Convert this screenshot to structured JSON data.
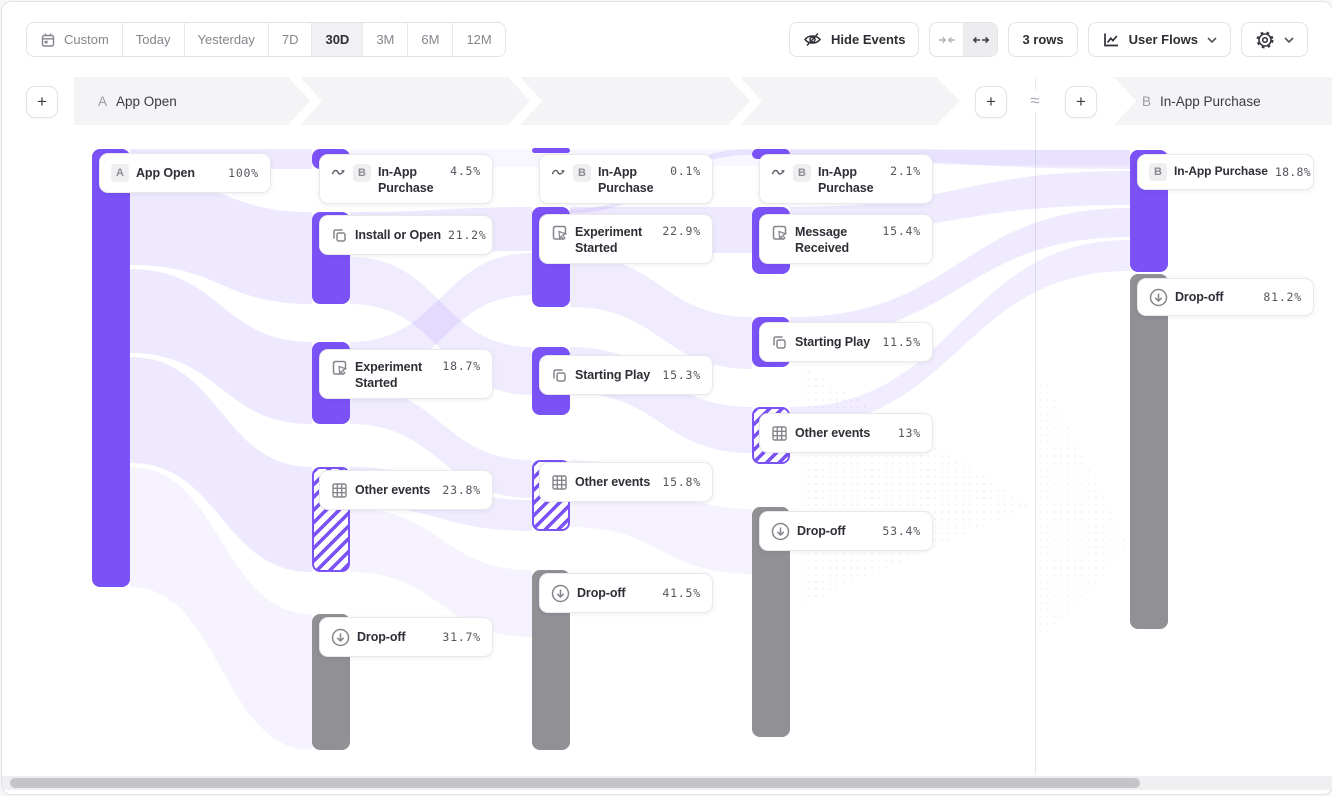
{
  "toolbar": {
    "date_ranges": [
      "Custom",
      "Today",
      "Yesterday",
      "7D",
      "30D",
      "3M",
      "6M",
      "12M"
    ],
    "selected_range": "30D",
    "hide_events": "Hide Events",
    "rows": "3 rows",
    "view": "User Flows"
  },
  "header": {
    "start_badge": "A",
    "start_label": "App Open",
    "end_badge": "B",
    "end_label": "In-App Purchase",
    "approx": "≈",
    "plus": "+"
  },
  "flow": {
    "badge_a": "A",
    "badge_b": "B",
    "nodes": [
      {
        "label": "App Open",
        "value": "100%",
        "icon": "badge-a",
        "column": 1
      },
      {
        "label": "In-App Purchase",
        "value": "4.5%",
        "icon": "flow-arrow-badge-b",
        "column": 2
      },
      {
        "label": "Install or Open",
        "value": "21.2%",
        "icon": "stacked-squares",
        "column": 2
      },
      {
        "label": "Experiment Started",
        "value": "18.7%",
        "icon": "custom-event",
        "column": 2
      },
      {
        "label": "Other events",
        "value": "23.8%",
        "icon": "grid",
        "column": 2
      },
      {
        "label": "Drop-off",
        "value": "31.7%",
        "icon": "drop-off",
        "column": 2
      },
      {
        "label": "In-App Purchase",
        "value": "0.1%",
        "icon": "flow-arrow-badge-b",
        "column": 3
      },
      {
        "label": "Experiment Started",
        "value": "22.9%",
        "icon": "custom-event",
        "column": 3
      },
      {
        "label": "Starting Play",
        "value": "15.3%",
        "icon": "stacked-squares",
        "column": 3
      },
      {
        "label": "Other events",
        "value": "15.8%",
        "icon": "grid",
        "column": 3
      },
      {
        "label": "Drop-off",
        "value": "41.5%",
        "icon": "drop-off",
        "column": 3
      },
      {
        "label": "In-App Purchase",
        "value": "2.1%",
        "icon": "flow-arrow-badge-b",
        "column": 4
      },
      {
        "label": "Message Received",
        "value": "15.4%",
        "icon": "custom-event",
        "column": 4
      },
      {
        "label": "Starting Play",
        "value": "11.5%",
        "icon": "stacked-squares",
        "column": 4
      },
      {
        "label": "Other events",
        "value": "13%",
        "icon": "grid",
        "column": 4
      },
      {
        "label": "Drop-off",
        "value": "53.4%",
        "icon": "drop-off",
        "column": 4
      },
      {
        "label": "In-App Purchase",
        "value": "18.8%",
        "icon": "badge-b",
        "column": 5
      },
      {
        "label": "Drop-off",
        "value": "81.2%",
        "icon": "drop-off",
        "column": 5
      }
    ]
  },
  "colors": {
    "accent_purple": "#7a52f6",
    "dropoff_gray": "#909095",
    "band_gray": "#f4f4f6",
    "ribbon_purple": "#7a52f6"
  }
}
